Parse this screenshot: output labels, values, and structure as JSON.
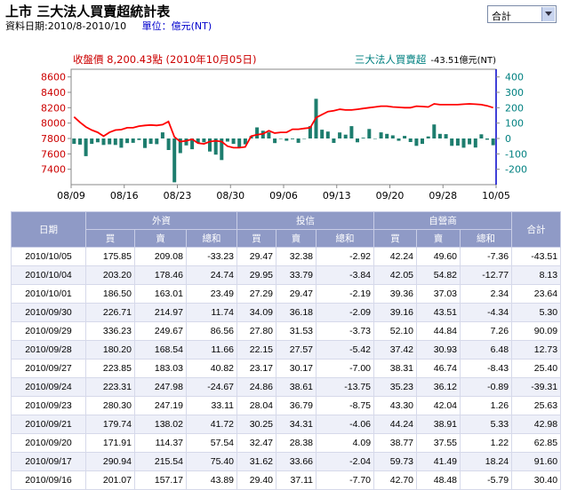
{
  "header": {
    "title": "上市 三大法人買賣超統計表",
    "date_range": "資料日期:2010/8-2010/10",
    "unit": "單位：億元(NT)",
    "select_value": "合計"
  },
  "chart_data": {
    "type": "bar+line",
    "legend_left": "收盤價 8,200.43點 (2010年10月05日)",
    "legend_right_label": "三大法人買賣超",
    "legend_right_value": "-43.51億元(NT)",
    "x_tick_labels": [
      "08/09",
      "08/16",
      "08/23",
      "08/30",
      "09/06",
      "09/13",
      "09/20",
      "09/28",
      "10/05"
    ],
    "y_left_ticks": [
      "8600",
      "8400",
      "8200",
      "8000",
      "7800",
      "7600",
      "7400"
    ],
    "y_right_ticks": [
      "400",
      "300",
      "200",
      "100",
      "0",
      "-100",
      "-200"
    ],
    "ylim_left": [
      7200,
      8700
    ],
    "ylim_right": [
      -300,
      450
    ],
    "colors": {
      "line": "#ff0000",
      "bars": "#1d7d6e",
      "left_axis": "#cc0000",
      "right_axis": "#008080",
      "right_axis_line": "#0000cc"
    },
    "bars": [
      -35,
      -40,
      -115,
      -35,
      -25,
      -42,
      -38,
      -42,
      -60,
      -30,
      -28,
      -10,
      -62,
      -35,
      -37,
      40,
      -75,
      -285,
      -95,
      -45,
      -70,
      -28,
      -25,
      -85,
      -105,
      -140,
      -20,
      -35,
      -55,
      -38,
      15,
      72,
      50,
      40,
      -30,
      0,
      -15,
      -5,
      -28,
      0,
      80,
      258,
      57,
      45,
      -29,
      39,
      25,
      80,
      -25,
      5,
      62,
      0,
      40,
      30,
      20,
      -15,
      17,
      -23,
      -48,
      -35,
      13,
      91,
      30,
      28,
      -48,
      -46,
      -60,
      -38,
      -59,
      27,
      -8,
      -44
    ],
    "close": [
      8080,
      8010,
      7950,
      7910,
      7880,
      7830,
      7880,
      7910,
      7915,
      7940,
      7940,
      7960,
      7970,
      7975,
      7970,
      7980,
      8020,
      7820,
      7760,
      7770,
      7790,
      7740,
      7730,
      7760,
      7770,
      7760,
      7700,
      7680,
      7680,
      7690,
      7830,
      7850,
      7860,
      7900,
      7870,
      7880,
      7880,
      7920,
      7920,
      7930,
      7940,
      8070,
      8110,
      8150,
      8160,
      8180,
      8170,
      8170,
      8180,
      8190,
      8200,
      8210,
      8220,
      8220,
      8210,
      8205,
      8200,
      8200,
      8220,
      8215,
      8210,
      8250,
      8240,
      8240,
      8240,
      8240,
      8245,
      8250,
      8245,
      8240,
      8225,
      8200
    ]
  },
  "table": {
    "header_top": [
      "日期",
      "外資",
      "投信",
      "自營商",
      "合計"
    ],
    "header_sub": [
      "買",
      "賣",
      "總和",
      "買",
      "賣",
      "總和",
      "買",
      "賣",
      "總和"
    ],
    "rows": [
      [
        "2010/10/05",
        "175.85",
        "209.08",
        "-33.23",
        "29.47",
        "32.38",
        "-2.92",
        "42.24",
        "49.60",
        "-7.36",
        "-43.51"
      ],
      [
        "2010/10/04",
        "203.20",
        "178.46",
        "24.74",
        "29.95",
        "33.79",
        "-3.84",
        "42.05",
        "54.82",
        "-12.77",
        "8.13"
      ],
      [
        "2010/10/01",
        "186.50",
        "163.01",
        "23.49",
        "27.29",
        "29.47",
        "-2.19",
        "39.36",
        "37.03",
        "2.34",
        "23.64"
      ],
      [
        "2010/09/30",
        "226.71",
        "214.97",
        "11.74",
        "34.09",
        "36.18",
        "-2.09",
        "39.16",
        "43.51",
        "-4.34",
        "5.30"
      ],
      [
        "2010/09/29",
        "336.23",
        "249.67",
        "86.56",
        "27.80",
        "31.53",
        "-3.73",
        "52.10",
        "44.84",
        "7.26",
        "90.09"
      ],
      [
        "2010/09/28",
        "180.20",
        "168.54",
        "11.66",
        "22.15",
        "27.57",
        "-5.42",
        "37.42",
        "30.93",
        "6.48",
        "12.73"
      ],
      [
        "2010/09/27",
        "223.85",
        "183.03",
        "40.82",
        "23.17",
        "30.17",
        "-7.00",
        "38.31",
        "46.74",
        "-8.43",
        "25.40"
      ],
      [
        "2010/09/24",
        "223.31",
        "247.98",
        "-24.67",
        "24.86",
        "38.61",
        "-13.75",
        "35.23",
        "36.12",
        "-0.89",
        "-39.31"
      ],
      [
        "2010/09/23",
        "280.30",
        "247.19",
        "33.11",
        "28.04",
        "36.79",
        "-8.75",
        "43.30",
        "42.04",
        "1.26",
        "25.63"
      ],
      [
        "2010/09/21",
        "179.74",
        "138.02",
        "41.72",
        "30.25",
        "34.31",
        "-4.06",
        "44.24",
        "38.91",
        "5.33",
        "42.98"
      ],
      [
        "2010/09/20",
        "171.91",
        "114.37",
        "57.54",
        "32.47",
        "28.38",
        "4.09",
        "38.77",
        "37.55",
        "1.22",
        "62.85"
      ],
      [
        "2010/09/17",
        "290.94",
        "215.54",
        "75.40",
        "31.62",
        "33.66",
        "-2.04",
        "59.73",
        "41.49",
        "18.24",
        "91.60"
      ],
      [
        "2010/09/16",
        "201.07",
        "157.17",
        "43.89",
        "29.40",
        "37.11",
        "-7.70",
        "42.70",
        "48.48",
        "-5.79",
        "30.40"
      ]
    ]
  }
}
